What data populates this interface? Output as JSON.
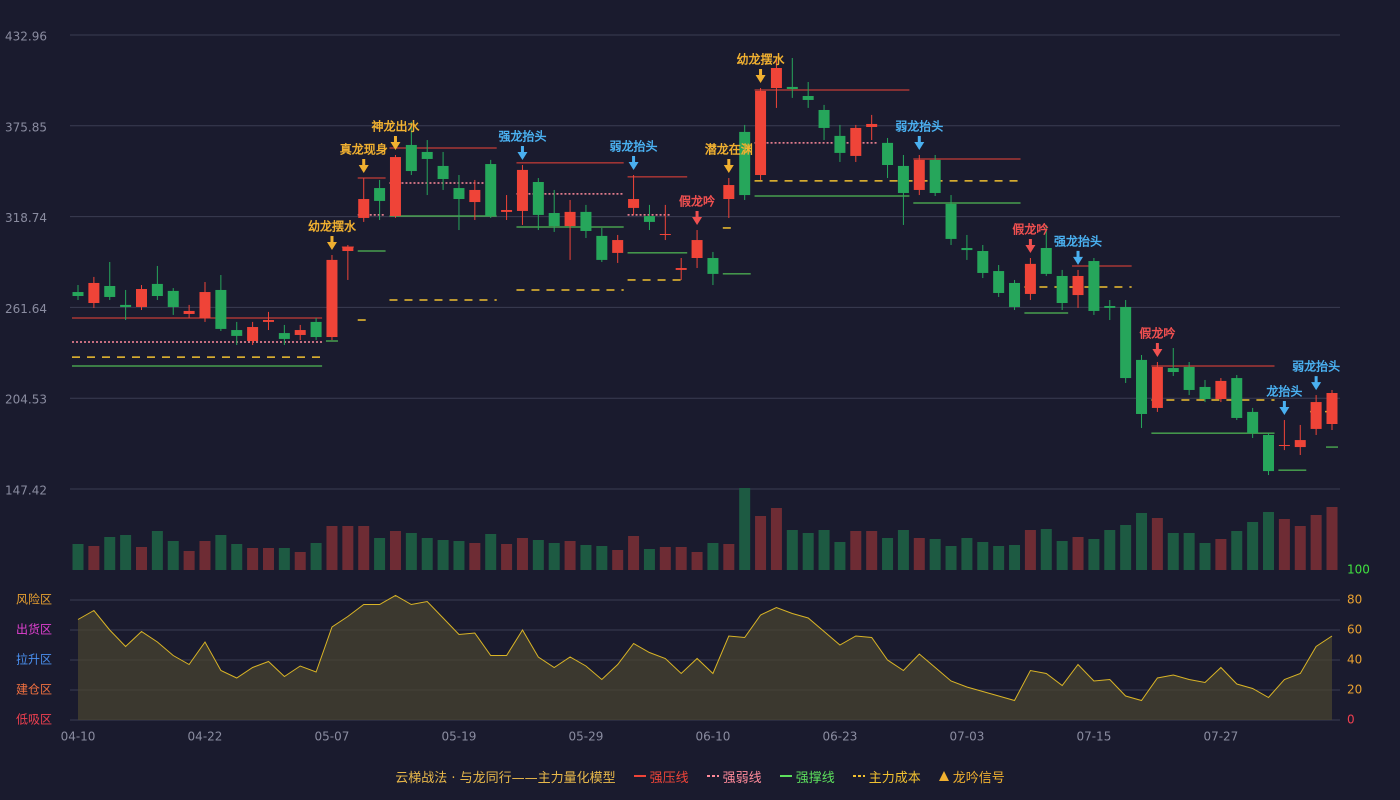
{
  "chart_data": {
    "type": "candlestick",
    "caption": "云梯战法 · 与龙同行——主力量化模型",
    "signal_legend": "龙吟信号",
    "signal_legend_color": "#f0b030",
    "categories": [
      "04-10",
      null,
      null,
      null,
      null,
      null,
      null,
      null,
      "04-22",
      null,
      null,
      null,
      null,
      null,
      null,
      null,
      "05-07",
      null,
      null,
      null,
      null,
      null,
      null,
      null,
      "05-19",
      null,
      null,
      null,
      null,
      null,
      null,
      null,
      "05-29",
      null,
      null,
      null,
      null,
      null,
      null,
      null,
      "06-10",
      null,
      null,
      null,
      null,
      null,
      null,
      null,
      "06-23",
      null,
      null,
      null,
      null,
      null,
      null,
      null,
      "07-03",
      null,
      null,
      null,
      null,
      null,
      null,
      null,
      "07-15",
      null,
      null,
      null,
      null,
      null,
      null,
      null,
      "07-27",
      null,
      null,
      null,
      null,
      null,
      null,
      null
    ],
    "ylim": [
      147.42,
      432.96
    ],
    "yticks": [
      147.42,
      204.53,
      261.64,
      318.74,
      375.85,
      432.96
    ],
    "grid": true,
    "up_color": "#ef4438",
    "down_color": "#26a65b",
    "candles": {
      "open": [
        271.3,
        264.4,
        275.1,
        263.2,
        261.9,
        276.4,
        272.0,
        257.5,
        255.0,
        272.6,
        247.4,
        240.5,
        252.5,
        245.5,
        244.3,
        252.5,
        243.0,
        297.1,
        317.9,
        336.7,
        319.1,
        363.8,
        359.4,
        350.6,
        336.7,
        327.9,
        351.8,
        321.7,
        322.3,
        340.5,
        321.0,
        312.8,
        321.7,
        306.6,
        295.9,
        324.2,
        319.1,
        307.2,
        285.2,
        292.7,
        292.7,
        329.8,
        372.0,
        344.9,
        399.6,
        400.3,
        394.6,
        385.8,
        369.5,
        356.9,
        375.1,
        365.1,
        350.6,
        335.5,
        354.4,
        326.7,
        299.0,
        297.1,
        284.5,
        277.0,
        270.1,
        299.0,
        281.4,
        269.4,
        290.8,
        262.5,
        261.9,
        228.6,
        198.4,
        223.5,
        224.2,
        211.6,
        204.0,
        217.2,
        195.9,
        181.4,
        174.5,
        173.8,
        185.2,
        188.3
      ],
      "high": [
        275.7,
        280.8,
        290.2,
        272.6,
        275.7,
        287.7,
        273.8,
        263.2,
        277.6,
        282.0,
        252.5,
        252.5,
        258.8,
        250.6,
        250.6,
        255.0,
        294.6,
        300.9,
        343.0,
        341.8,
        357.5,
        378.3,
        366.9,
        359.4,
        344.9,
        341.8,
        354.4,
        332.3,
        351.2,
        343.0,
        335.5,
        329.2,
        326.1,
        311.6,
        307.2,
        344.9,
        326.1,
        326.1,
        292.7,
        310.3,
        296.5,
        343.0,
        376.4,
        399.6,
        417.3,
        418.5,
        403.4,
        389.0,
        376.4,
        376.4,
        382.7,
        368.2,
        357.5,
        357.5,
        357.5,
        332.3,
        307.2,
        300.9,
        288.3,
        278.9,
        292.7,
        313.5,
        285.2,
        285.2,
        292.7,
        266.3,
        266.3,
        231.7,
        227.3,
        236.1,
        227.3,
        216.0,
        217.2,
        219.1,
        198.4,
        182.6,
        190.8,
        187.7,
        206.5,
        209.7
      ],
      "low": [
        266.3,
        261.3,
        266.3,
        253.7,
        260.0,
        266.3,
        256.9,
        255.0,
        252.5,
        246.8,
        238.0,
        238.0,
        247.4,
        238.0,
        241.1,
        241.1,
        241.1,
        278.9,
        315.4,
        316.6,
        317.9,
        344.9,
        332.3,
        335.5,
        310.3,
        316.6,
        317.9,
        316.6,
        313.5,
        310.3,
        309.1,
        291.5,
        305.3,
        290.2,
        289.6,
        319.8,
        310.3,
        304.0,
        278.9,
        286.4,
        275.7,
        317.9,
        329.2,
        341.8,
        387.1,
        393.4,
        387.1,
        366.9,
        353.1,
        353.1,
        366.9,
        343.0,
        313.5,
        332.3,
        331.7,
        300.9,
        291.5,
        280.1,
        268.2,
        260.0,
        266.3,
        281.4,
        260.0,
        261.3,
        256.9,
        253.7,
        214.1,
        185.8,
        195.9,
        218.5,
        206.5,
        202.1,
        202.1,
        190.8,
        179.5,
        156.2,
        171.9,
        168.8,
        181.4,
        184.5
      ],
      "close": [
        268.8,
        277.0,
        268.2,
        261.9,
        273.2,
        268.8,
        261.9,
        259.4,
        271.3,
        248.1,
        243.7,
        249.3,
        253.7,
        241.8,
        247.4,
        243.0,
        291.5,
        299.6,
        329.8,
        328.6,
        356.2,
        347.4,
        355.0,
        342.4,
        329.8,
        335.5,
        319.1,
        322.9,
        348.1,
        319.8,
        312.8,
        321.7,
        309.7,
        291.5,
        304.0,
        329.8,
        315.4,
        307.8,
        286.4,
        304.0,
        282.7,
        338.6,
        332.3,
        397.8,
        412.2,
        399.0,
        392.1,
        374.5,
        358.8,
        374.5,
        377.0,
        351.2,
        333.6,
        354.4,
        333.6,
        304.7,
        297.7,
        283.3,
        270.7,
        261.9,
        289.0,
        282.7,
        264.4,
        281.4,
        259.4,
        261.3,
        217.2,
        194.6,
        224.2,
        221.0,
        209.7,
        204.0,
        215.4,
        192.1,
        182.6,
        158.7,
        175.1,
        178.2,
        202.1,
        207.8
      ]
    },
    "volume": {
      "up_color": "#6e2c34",
      "down_color": "#1d5a42",
      "values": [
        26,
        24,
        33,
        35,
        23,
        39,
        29,
        19,
        29,
        35,
        26,
        22,
        22,
        22,
        18,
        27,
        44,
        44,
        44,
        32,
        39,
        37,
        32,
        30,
        29,
        27,
        36,
        26,
        32,
        30,
        27,
        29,
        25,
        24,
        20,
        34,
        21,
        23,
        23,
        18,
        27,
        26,
        82,
        54,
        62,
        40,
        37,
        40,
        28,
        39,
        39,
        32,
        40,
        32,
        31,
        24,
        32,
        28,
        24,
        25,
        40,
        41,
        29,
        33,
        31,
        40,
        45,
        57,
        52,
        37,
        37,
        27,
        31,
        39,
        48,
        58,
        51,
        44,
        55,
        63
      ]
    },
    "oscillator": {
      "color": "#d9b426",
      "fill": "#4a4430",
      "y2lim": [
        0,
        100
      ],
      "y2ticks": [
        0,
        20,
        40,
        60,
        80,
        100
      ],
      "tick_colors": [
        "#f04050",
        "#e8a030",
        "#e8a030",
        "#e8a030",
        "#e8a030",
        "#40e040"
      ],
      "zones": [
        {
          "label": "风险区",
          "value": 80,
          "color": "#e8a030"
        },
        {
          "label": "出货区",
          "value": 60,
          "color": "#e040d0"
        },
        {
          "label": "拉升区",
          "value": 40,
          "color": "#4a90f0"
        },
        {
          "label": "建仓区",
          "value": 20,
          "color": "#f07040"
        },
        {
          "label": "低吸区",
          "value": 0,
          "color": "#f04050"
        }
      ],
      "values": [
        67,
        73,
        60,
        49,
        59,
        52,
        43,
        37,
        52,
        33,
        28,
        35,
        39,
        29,
        36,
        32,
        62,
        69,
        77,
        77,
        83,
        77,
        79,
        68,
        57,
        58,
        43,
        43,
        60,
        42,
        35,
        42,
        36,
        27,
        37,
        51,
        45,
        41,
        31,
        41,
        31,
        56,
        55,
        70,
        75,
        71,
        68,
        59,
        50,
        56,
        55,
        40,
        33,
        44,
        35,
        26,
        22,
        19,
        16,
        13,
        33,
        31,
        23,
        37,
        26,
        27,
        16,
        13,
        28,
        30,
        27,
        25,
        35,
        24,
        21,
        15,
        27,
        31,
        49,
        56
      ]
    },
    "levels": [
      {
        "name": "强压线",
        "color": "#ef4438",
        "dash": "none",
        "segments": [
          [
            0,
            15,
            255.0
          ],
          [
            17,
            17,
            299.6
          ],
          [
            18,
            19,
            343.0
          ],
          [
            20,
            26,
            361.9
          ],
          [
            28,
            34,
            352.5
          ],
          [
            35,
            38,
            343.7
          ],
          [
            43,
            52,
            398.4
          ],
          [
            53,
            59,
            355.0
          ],
          [
            63,
            66,
            287.7
          ],
          [
            68,
            75,
            224.8
          ]
        ]
      },
      {
        "name": "强弱线",
        "color": "#ff8a9a",
        "dash": "2,2",
        "segments": [
          [
            0,
            15,
            239.9
          ],
          [
            18,
            19,
            319.8
          ],
          [
            20,
            26,
            339.9
          ],
          [
            28,
            34,
            333.0
          ],
          [
            35,
            37,
            319.8
          ],
          [
            43,
            50,
            365.1
          ]
        ]
      },
      {
        "name": "强撑线",
        "color": "#5de05d",
        "dash": "none",
        "segments": [
          [
            0,
            15,
            224.8
          ],
          [
            16,
            16,
            240.5
          ],
          [
            18,
            19,
            297.1
          ],
          [
            20,
            26,
            319.1
          ],
          [
            28,
            34,
            312.2
          ],
          [
            35,
            38,
            295.9
          ],
          [
            41,
            42,
            282.7
          ],
          [
            43,
            52,
            331.7
          ],
          [
            53,
            59,
            327.3
          ],
          [
            60,
            62,
            258.1
          ],
          [
            68,
            75,
            182.6
          ],
          [
            76,
            77,
            159.3
          ],
          [
            79,
            79,
            173.8
          ]
        ]
      },
      {
        "name": "主力成本",
        "color": "#f0c030",
        "dash": "8,7",
        "segments": [
          [
            0,
            15,
            230.4
          ],
          [
            18,
            18,
            253.7
          ],
          [
            20,
            26,
            266.3
          ],
          [
            28,
            34,
            272.6
          ],
          [
            35,
            38,
            278.9
          ],
          [
            41,
            41,
            311.6
          ],
          [
            43,
            59,
            341.2
          ],
          [
            60,
            66,
            274.5
          ],
          [
            68,
            75,
            203.4
          ],
          [
            78,
            79,
            196.1
          ]
        ]
      }
    ],
    "signals": [
      {
        "text": "幼龙摆水",
        "index": 16,
        "color": "#f0b030"
      },
      {
        "text": "真龙现身",
        "index": 18,
        "color": "#f0b030"
      },
      {
        "text": "神龙出水",
        "index": 20,
        "color": "#f0b030"
      },
      {
        "text": "强龙抬头",
        "index": 28,
        "color": "#4ab0f0"
      },
      {
        "text": "弱龙抬头",
        "index": 35,
        "color": "#4ab0f0"
      },
      {
        "text": "假龙吟",
        "index": 39,
        "color": "#f05050"
      },
      {
        "text": "潜龙在渊",
        "index": 41,
        "color": "#f0b030"
      },
      {
        "text": "幼龙摆水",
        "index": 43,
        "color": "#f0b030"
      },
      {
        "text": "弱龙抬头",
        "index": 53,
        "color": "#4ab0f0"
      },
      {
        "text": "假龙吟",
        "index": 60,
        "color": "#f05050"
      },
      {
        "text": "强龙抬头",
        "index": 63,
        "color": "#4ab0f0"
      },
      {
        "text": "假龙吟",
        "index": 68,
        "color": "#f05050"
      },
      {
        "text": "龙抬头",
        "index": 76,
        "color": "#4ab0f0"
      },
      {
        "text": "弱龙抬头",
        "index": 78,
        "color": "#4ab0f0"
      }
    ]
  }
}
